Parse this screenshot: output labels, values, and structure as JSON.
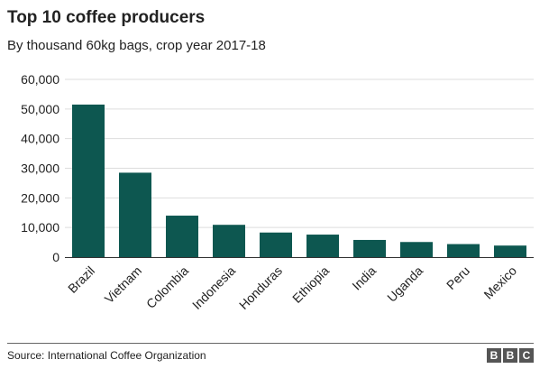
{
  "title": "Top 10 coffee producers",
  "subtitle": "By thousand 60kg bags, crop year 2017-18",
  "source": "Source: International Coffee Organization",
  "logo": {
    "letters": [
      "B",
      "B",
      "C"
    ]
  },
  "colors": {
    "bar": "#0d5750",
    "grid": "#dddddd",
    "axis": "#333333",
    "text": "#222222"
  },
  "chart_data": {
    "type": "bar",
    "categories": [
      "Brazil",
      "Vietnam",
      "Colombia",
      "Indonesia",
      "Honduras",
      "Ethiopia",
      "India",
      "Uganda",
      "Peru",
      "Mexico"
    ],
    "values": [
      51500,
      28500,
      14000,
      10900,
      8300,
      7600,
      5800,
      5100,
      4400,
      3900
    ],
    "ylim": [
      0,
      60000
    ],
    "yticks": [
      0,
      10000,
      20000,
      30000,
      40000,
      50000,
      60000
    ],
    "ytick_labels": [
      "0",
      "10,000",
      "20,000",
      "30,000",
      "40,000",
      "50,000",
      "60,000"
    ],
    "grid": true
  }
}
